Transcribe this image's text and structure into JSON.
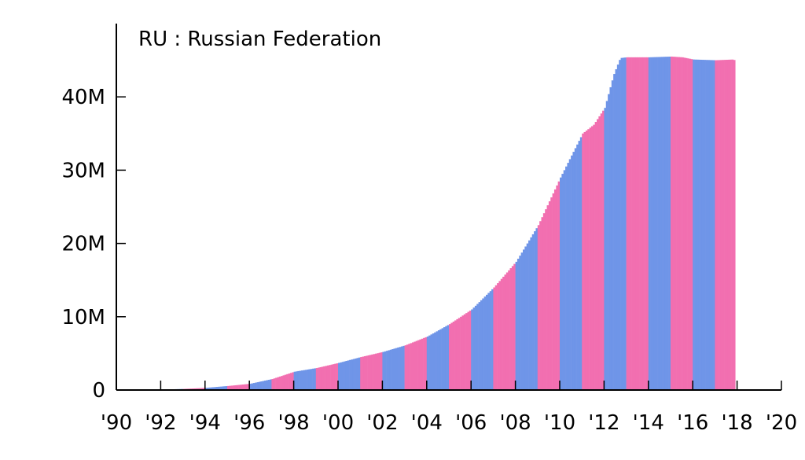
{
  "chart_data": {
    "type": "bar",
    "title": "RU : Russian Federation",
    "xlabel": "",
    "ylabel": "",
    "xlim": [
      1990,
      2020
    ],
    "ylim": [
      0,
      50000000
    ],
    "grid": false,
    "y_ticks": [
      {
        "value": 0,
        "label": "0"
      },
      {
        "value": 10000000,
        "label": "10M"
      },
      {
        "value": 20000000,
        "label": "20M"
      },
      {
        "value": 30000000,
        "label": "30M"
      },
      {
        "value": 40000000,
        "label": "40M"
      }
    ],
    "x_ticks": [
      {
        "value": 1990,
        "label": "'90"
      },
      {
        "value": 1992,
        "label": "'92"
      },
      {
        "value": 1994,
        "label": "'94"
      },
      {
        "value": 1996,
        "label": "'96"
      },
      {
        "value": 1998,
        "label": "'98"
      },
      {
        "value": 2000,
        "label": "'00"
      },
      {
        "value": 2002,
        "label": "'02"
      },
      {
        "value": 2004,
        "label": "'04"
      },
      {
        "value": 2006,
        "label": "'06"
      },
      {
        "value": 2008,
        "label": "'08"
      },
      {
        "value": 2010,
        "label": "'10"
      },
      {
        "value": 2012,
        "label": "'12"
      },
      {
        "value": 2014,
        "label": "'14"
      },
      {
        "value": 2016,
        "label": "'16"
      },
      {
        "value": 2018,
        "label": "'18"
      },
      {
        "value": 2020,
        "label": "'20"
      }
    ],
    "colors": {
      "even_year": "#6f95e8",
      "odd_year": "#f26fb0",
      "axis": "#000000"
    },
    "series": [
      {
        "points": [
          {
            "x": 1992.5,
            "y": 100000
          },
          {
            "x": 1993,
            "y": 150000
          },
          {
            "x": 1994,
            "y": 300000
          },
          {
            "x": 1995,
            "y": 550000
          },
          {
            "x": 1996,
            "y": 850000
          },
          {
            "x": 1997,
            "y": 1500000
          },
          {
            "x": 1998,
            "y": 2500000
          },
          {
            "x": 1999,
            "y": 3000000
          },
          {
            "x": 2000,
            "y": 3700000
          },
          {
            "x": 2001,
            "y": 4500000
          },
          {
            "x": 2002,
            "y": 5200000
          },
          {
            "x": 2003,
            "y": 6100000
          },
          {
            "x": 2004,
            "y": 7300000
          },
          {
            "x": 2005,
            "y": 9000000
          },
          {
            "x": 2006,
            "y": 11000000
          },
          {
            "x": 2007,
            "y": 14000000
          },
          {
            "x": 2008,
            "y": 17500000
          },
          {
            "x": 2009,
            "y": 22500000
          },
          {
            "x": 2010,
            "y": 29000000
          },
          {
            "x": 2011,
            "y": 35000000
          },
          {
            "x": 2011.5,
            "y": 36200000
          },
          {
            "x": 2012,
            "y": 38500000
          },
          {
            "x": 2012.4,
            "y": 43000000
          },
          {
            "x": 2012.7,
            "y": 45300000
          },
          {
            "x": 2013,
            "y": 45400000
          },
          {
            "x": 2014,
            "y": 45400000
          },
          {
            "x": 2015,
            "y": 45500000
          },
          {
            "x": 2015.5,
            "y": 45400000
          },
          {
            "x": 2016,
            "y": 45100000
          },
          {
            "x": 2017,
            "y": 45000000
          },
          {
            "x": 2017.8,
            "y": 45100000
          },
          {
            "x": 2017.9,
            "y": 44900000
          }
        ]
      }
    ]
  }
}
